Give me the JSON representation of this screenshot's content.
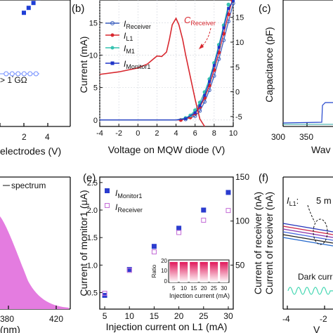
{
  "panel_a": {
    "annotation": "> 1 GΩ",
    "xlabel": "electrodes (V)",
    "xticks": [
      "2",
      "4"
    ],
    "colors": {
      "series": "#1f3fd6",
      "open_marker": "#6f8cff"
    },
    "chart_data": {
      "type": "scatter",
      "series": [
        {
          "x": [
            1.0,
            1.2,
            1.4,
            1.6,
            1.8,
            2.0,
            2.2,
            2.4,
            2.6,
            2.8,
            3.0
          ],
          "y": [
            0.62,
            0.67,
            0.72,
            0.77,
            0.82,
            0.87,
            0.92,
            0.97,
            1.02,
            1.07,
            1.12
          ]
        },
        {
          "x": [
            0.2,
            0.45,
            0.7,
            0.95,
            1.2,
            1.45
          ],
          "y": [
            0.0,
            0.0,
            0.0,
            0.0,
            0.0,
            0.0
          ]
        }
      ],
      "xlim": [
        0,
        4
      ]
    }
  },
  "panel_b": {
    "label": "(b)",
    "xlabel": "Voltage on MQW diode (V)",
    "ylabel": "Current (mA)",
    "cap_label": "C",
    "cap_label_sub": "Receiver",
    "legend": [
      {
        "main": "I",
        "sub": "Receiver",
        "color": "#3a5fbf"
      },
      {
        "main": "I",
        "sub": "L1",
        "color": "#d8282f"
      },
      {
        "main": "I",
        "sub": "M1",
        "color": "#37c2b0"
      },
      {
        "main": "I",
        "sub": "Monitor1",
        "color": "#1f35c8"
      }
    ],
    "xticks": [
      "-4",
      "-2",
      "0",
      "2",
      "4",
      "6",
      "8",
      "10"
    ],
    "yticks_left": [
      "0",
      "5",
      "10",
      "15"
    ],
    "yticks_right": [
      "-5",
      "0",
      "5",
      "10",
      "15"
    ],
    "chart_data": {
      "type": "line",
      "xlabel": "Voltage on MQW diode (V)",
      "ylabel": "Current (mA)",
      "xlim": [
        -4,
        10
      ],
      "ylim": [
        -1,
        18.5
      ],
      "y2lim": [
        -7,
        18.5
      ],
      "series": [
        {
          "name": "I Receiver",
          "x": [
            -4,
            4,
            5,
            6,
            6.5,
            7,
            7.5,
            8,
            8.5,
            9,
            9.5,
            10
          ],
          "y": [
            0,
            0,
            0.1,
            0.6,
            1.4,
            2.8,
            4.6,
            6.8,
            9.4,
            12.3,
            15.2,
            18
          ]
        },
        {
          "name": "I L1",
          "x": [
            -4,
            4.5,
            5.5,
            6,
            6.5,
            7,
            7.5,
            8,
            8.5,
            9,
            9.5,
            9.9
          ],
          "y": [
            0,
            0,
            0.4,
            1.0,
            2.0,
            3.4,
            5.3,
            7.7,
            10.4,
            13.3,
            16.3,
            18.5
          ]
        },
        {
          "name": "I M1",
          "x": [
            -4,
            4,
            5,
            5.5,
            6,
            6.5,
            7,
            7.5,
            8,
            8.5,
            9,
            9.5
          ],
          "y": [
            0,
            0,
            0.3,
            0.7,
            1.5,
            2.7,
            4.3,
            6.3,
            8.8,
            11.6,
            14.6,
            17.8
          ]
        },
        {
          "name": "I Monitor1",
          "x": [
            -4,
            4,
            5,
            6,
            6.5,
            7,
            7.5,
            8,
            8.5,
            9,
            9.5,
            10
          ],
          "y": [
            0,
            0,
            0.2,
            1.1,
            2.2,
            3.8,
            5.9,
            8.4,
            11.2,
            14.2,
            17.2,
            18.4
          ]
        },
        {
          "name": "C Receiver",
          "axis": "right",
          "x": [
            -4,
            -2,
            0,
            1,
            1.5,
            2,
            2.5,
            3,
            3.3,
            3.6,
            4,
            4.3,
            4.7,
            5,
            5.5,
            6,
            6.5,
            7
          ],
          "y": [
            3.5,
            4.0,
            4.8,
            5.6,
            6.4,
            7.2,
            7.1,
            8.0,
            10.5,
            13.5,
            14.8,
            13.5,
            10.5,
            7.5,
            3.0,
            -1.5,
            -5.5,
            -8.5
          ]
        }
      ]
    }
  },
  "panel_c": {
    "label": "(c)",
    "ylabel": "Capacitance (pF)",
    "xlabel": "Wav",
    "xticks": [
      "300",
      "350"
    ]
  },
  "panel_d": {
    "legend_text": "spectrum",
    "xlabel": "(nm)",
    "xticks": [
      "380",
      "420"
    ],
    "colors": {
      "fill": "#e47ce0"
    }
  },
  "panel_e": {
    "label": "(e)",
    "xlabel": "Injection current on L1 (mA)",
    "ylabel_left": "Current of monitor1 (μA)",
    "ylabel_right": "Current of receiver (nA)",
    "xticks": [
      "5",
      "10",
      "15",
      "20",
      "25",
      "30"
    ],
    "yticks_left": [
      "0.5",
      "1.0",
      "1.5",
      "2.0",
      "2.5"
    ],
    "yticks_right": [
      "50",
      "100",
      "150"
    ],
    "legend": [
      {
        "main": "I",
        "sub": "Monitor1",
        "color": "#2b3ccf"
      },
      {
        "main": "I",
        "sub": "Receiver",
        "color": "#c36ad6"
      }
    ],
    "inset": {
      "ylabel": "Ratio",
      "xlabel": "Injection current (mA)",
      "xticks": [
        "5",
        "10",
        "15",
        "20",
        "25",
        "30"
      ],
      "yticks": [
        "0",
        "10",
        "20"
      ]
    },
    "chart_data": {
      "type": "scatter",
      "xlabel": "Injection current on L1 (mA)",
      "ylabel": "Current of monitor1 (μA)",
      "xlim": [
        4,
        31
      ],
      "ylim": [
        0.2,
        2.6
      ],
      "y2lim": [
        0,
        150
      ],
      "series": [
        {
          "name": "I Monitor1",
          "x": [
            5,
            10,
            15,
            20,
            25,
            30
          ],
          "y": [
            0.45,
            0.92,
            1.34,
            1.67,
            2.0,
            2.32
          ]
        },
        {
          "name": "I Receiver",
          "axis": "right",
          "x": [
            5,
            10,
            15,
            20,
            25,
            30
          ],
          "y": [
            18,
            44,
            65,
            87,
            101,
            112
          ]
        },
        {
          "name": "Ratio",
          "inset": true,
          "x": [
            5,
            10,
            15,
            20,
            25,
            30
          ],
          "y": [
            20,
            20,
            20,
            20,
            20,
            20
          ]
        }
      ]
    }
  },
  "panel_f": {
    "label": "(f)",
    "ylabel": "Current of receiver (nA)",
    "l1_main": "I",
    "l1_sub": "L1",
    "l1_value": "5 m",
    "dark_label": "Dark curr",
    "xlabel": "V",
    "xticks": [
      "-4",
      "-2"
    ]
  }
}
